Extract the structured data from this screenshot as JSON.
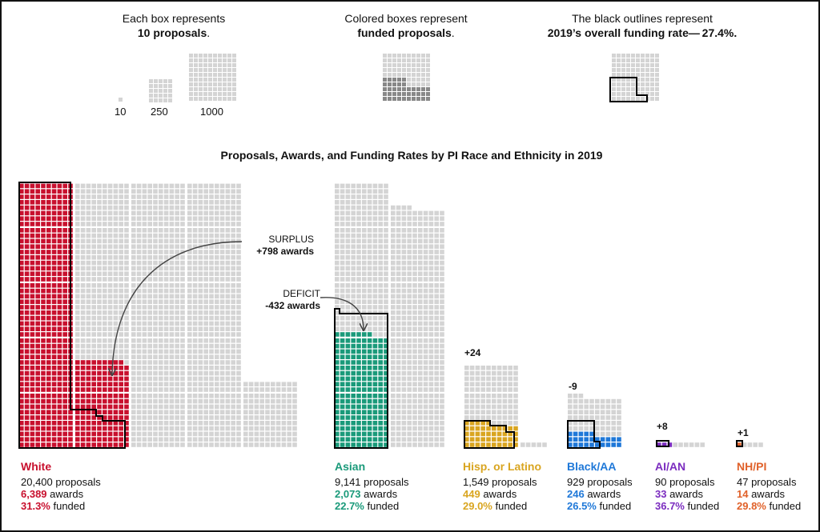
{
  "legend": {
    "box": {
      "line1": "Each box represents",
      "bold": "10 proposals",
      "suffix": "."
    },
    "colored": {
      "line1": "Colored boxes represent",
      "bold": "funded proposals",
      "suffix": "."
    },
    "outline": {
      "line1": "The black outlines represent",
      "bold": "2019’s overall funding rate— 27.4%."
    },
    "scale_labels": [
      "10",
      "250",
      "1000"
    ]
  },
  "title": "Proposals, Awards, and Funding Rates by PI Race and Ethnicity in 2019",
  "annotations": {
    "surplus": {
      "label": "SURPLUS",
      "value": "+798 awards"
    },
    "deficit": {
      "label": "DEFICIT",
      "value": "-432 awards"
    }
  },
  "colors": {
    "white": "#c8102e",
    "asian": "#1a9a7a",
    "hispanic": "#d9a520",
    "black": "#1f78d8",
    "aian": "#7b2cbf",
    "nhpi": "#e0612a",
    "empty": "#d4d4d4"
  },
  "chart_data": {
    "type": "table",
    "overall_funding_rate": 27.4,
    "groups": [
      {
        "name": "White",
        "proposals": "20,400",
        "awards": "6,389",
        "funded": "31.3%",
        "delta": "+798",
        "proposals_n": 20400,
        "awards_n": 6389,
        "rate": 31.3
      },
      {
        "name": "Asian",
        "proposals": "9,141",
        "awards": "2,073",
        "funded": "22.7%",
        "delta": "-432",
        "proposals_n": 9141,
        "awards_n": 2073,
        "rate": 22.7
      },
      {
        "name": "Hisp. or Latino",
        "proposals": "1,549",
        "awards": "449",
        "funded": "29.0%",
        "delta": "+24",
        "proposals_n": 1549,
        "awards_n": 449,
        "rate": 29.0
      },
      {
        "name": "Black/AA",
        "proposals": "929",
        "awards": "246",
        "funded": "26.5%",
        "delta": "-9",
        "proposals_n": 929,
        "awards_n": 246,
        "rate": 26.5
      },
      {
        "name": "AI/AN",
        "proposals": "90",
        "awards": "33",
        "funded": "36.7%",
        "delta": "+8",
        "proposals_n": 90,
        "awards_n": 33,
        "rate": 36.7
      },
      {
        "name": "NH/PI",
        "proposals": "47",
        "awards": "14",
        "funded": "29.8%",
        "delta": "+1",
        "proposals_n": 47,
        "awards_n": 14,
        "rate": 29.8
      }
    ],
    "label_suffixes": {
      "proposals": " proposals",
      "awards": " awards",
      "funded": " funded"
    }
  }
}
